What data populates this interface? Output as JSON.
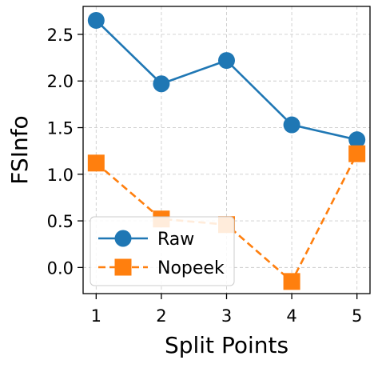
{
  "chart_data": {
    "type": "line",
    "title": "",
    "xlabel": "Split Points",
    "ylabel": "FSInfo",
    "x": [
      1,
      2,
      3,
      4,
      5
    ],
    "xticks": [
      "1",
      "2",
      "3",
      "4",
      "5"
    ],
    "yticks": [
      "0.0",
      "0.5",
      "1.0",
      "1.5",
      "2.0",
      "2.5"
    ],
    "ytick_values": [
      0.0,
      0.5,
      1.0,
      1.5,
      2.0,
      2.5
    ],
    "xlim": [
      0.8,
      5.2
    ],
    "ylim": [
      -0.28,
      2.8
    ],
    "grid": true,
    "legend_position": "lower-left",
    "series": [
      {
        "name": "Raw",
        "values": [
          2.65,
          1.97,
          2.22,
          1.53,
          1.37
        ],
        "color": "#1f77b4",
        "marker": "circle",
        "line_style": "solid"
      },
      {
        "name": "Nopeek",
        "values": [
          1.12,
          0.52,
          0.46,
          -0.15,
          1.22
        ],
        "color": "#ff7f0e",
        "marker": "square",
        "line_style": "dashed"
      }
    ]
  }
}
